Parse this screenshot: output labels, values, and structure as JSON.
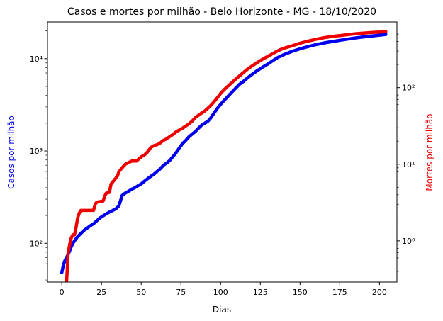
{
  "chart_data": {
    "type": "line",
    "title": "Casos e mortes por milhão - Belo Horizonte - MG - 18/10/2020",
    "xlabel": "Dias",
    "ylabel_left": "Casos por milhão",
    "ylabel_right": "Mortes por milhão",
    "xlim": [
      -9,
      211
    ],
    "ylim_left": [
      38,
      25000
    ],
    "ylim_right": [
      0.29,
      720
    ],
    "yscale_left": "log",
    "yscale_right": "log",
    "grid": false,
    "x_ticks": [
      0,
      25,
      50,
      75,
      100,
      125,
      150,
      175,
      200
    ],
    "y_left_ticks": [
      {
        "value": 100,
        "label": "10²"
      },
      {
        "value": 1000,
        "label": "10³"
      },
      {
        "value": 10000,
        "label": "10⁴"
      }
    ],
    "y_right_ticks": [
      {
        "value": 1,
        "label": "10⁰"
      },
      {
        "value": 10,
        "label": "10¹"
      },
      {
        "value": 100,
        "label": "10²"
      }
    ],
    "series": [
      {
        "axis": "left",
        "color": "#0000ee",
        "points": [
          [
            0,
            48
          ],
          [
            1,
            58
          ],
          [
            2,
            65
          ],
          [
            3,
            70
          ],
          [
            4,
            76
          ],
          [
            5,
            83
          ],
          [
            6,
            92
          ],
          [
            7,
            100
          ],
          [
            8,
            106
          ],
          [
            9,
            112
          ],
          [
            10,
            118
          ],
          [
            12,
            128
          ],
          [
            14,
            138
          ],
          [
            16,
            146
          ],
          [
            18,
            155
          ],
          [
            20,
            163
          ],
          [
            22,
            175
          ],
          [
            24,
            188
          ],
          [
            26,
            198
          ],
          [
            28,
            208
          ],
          [
            30,
            218
          ],
          [
            32,
            226
          ],
          [
            34,
            236
          ],
          [
            36,
            255
          ],
          [
            37,
            290
          ],
          [
            38,
            330
          ],
          [
            40,
            350
          ],
          [
            42,
            365
          ],
          [
            44,
            385
          ],
          [
            46,
            400
          ],
          [
            48,
            420
          ],
          [
            50,
            440
          ],
          [
            52,
            470
          ],
          [
            54,
            500
          ],
          [
            56,
            530
          ],
          [
            58,
            560
          ],
          [
            60,
            600
          ],
          [
            62,
            640
          ],
          [
            64,
            700
          ],
          [
            66,
            740
          ],
          [
            68,
            790
          ],
          [
            70,
            870
          ],
          [
            72,
            960
          ],
          [
            74,
            1080
          ],
          [
            76,
            1200
          ],
          [
            78,
            1300
          ],
          [
            80,
            1420
          ],
          [
            82,
            1520
          ],
          [
            84,
            1620
          ],
          [
            86,
            1760
          ],
          [
            88,
            1900
          ],
          [
            90,
            2000
          ],
          [
            92,
            2100
          ],
          [
            94,
            2300
          ],
          [
            96,
            2600
          ],
          [
            98,
            2900
          ],
          [
            100,
            3200
          ],
          [
            102,
            3500
          ],
          [
            104,
            3800
          ],
          [
            106,
            4150
          ],
          [
            108,
            4500
          ],
          [
            110,
            4900
          ],
          [
            112,
            5300
          ],
          [
            114,
            5600
          ],
          [
            116,
            6000
          ],
          [
            118,
            6400
          ],
          [
            120,
            6800
          ],
          [
            122,
            7200
          ],
          [
            124,
            7600
          ],
          [
            126,
            8000
          ],
          [
            128,
            8400
          ],
          [
            130,
            8800
          ],
          [
            132,
            9300
          ],
          [
            134,
            9800
          ],
          [
            136,
            10300
          ],
          [
            138,
            10700
          ],
          [
            140,
            11100
          ],
          [
            145,
            12000
          ],
          [
            150,
            12800
          ],
          [
            155,
            13500
          ],
          [
            160,
            14200
          ],
          [
            165,
            14800
          ],
          [
            170,
            15300
          ],
          [
            175,
            15800
          ],
          [
            180,
            16300
          ],
          [
            185,
            16800
          ],
          [
            190,
            17200
          ],
          [
            195,
            17600
          ],
          [
            200,
            18000
          ],
          [
            204,
            18300
          ]
        ]
      },
      {
        "axis": "right",
        "color": "#ee0000",
        "points": [
          [
            3,
            0.28
          ],
          [
            3.5,
            0.45
          ],
          [
            4,
            0.7
          ],
          [
            5,
            0.9
          ],
          [
            6,
            1.1
          ],
          [
            7,
            1.2
          ],
          [
            8,
            1.2
          ],
          [
            9,
            1.5
          ],
          [
            10,
            2.0
          ],
          [
            11,
            2.3
          ],
          [
            12,
            2.5
          ],
          [
            16,
            2.5
          ],
          [
            20,
            2.5
          ],
          [
            21,
            3.0
          ],
          [
            22,
            3.2
          ],
          [
            26,
            3.3
          ],
          [
            27,
            3.8
          ],
          [
            28,
            4.2
          ],
          [
            30,
            4.3
          ],
          [
            31,
            5.5
          ],
          [
            33,
            6.2
          ],
          [
            35,
            7.0
          ],
          [
            36,
            8.0
          ],
          [
            38,
            9.0
          ],
          [
            40,
            10.0
          ],
          [
            42,
            10.5
          ],
          [
            44,
            11.0
          ],
          [
            47,
            11.0
          ],
          [
            50,
            12.5
          ],
          [
            52,
            13.2
          ],
          [
            54,
            14.5
          ],
          [
            56,
            16.5
          ],
          [
            58,
            17.5
          ],
          [
            60,
            18.0
          ],
          [
            62,
            19.0
          ],
          [
            64,
            20.5
          ],
          [
            66,
            21.5
          ],
          [
            68,
            23.0
          ],
          [
            70,
            24.5
          ],
          [
            72,
            26.5
          ],
          [
            74,
            28.0
          ],
          [
            76,
            29.5
          ],
          [
            78,
            31.5
          ],
          [
            80,
            33.5
          ],
          [
            82,
            36.5
          ],
          [
            84,
            40.5
          ],
          [
            86,
            43.5
          ],
          [
            88,
            46.5
          ],
          [
            90,
            49.5
          ],
          [
            92,
            54
          ],
          [
            94,
            59
          ],
          [
            96,
            66
          ],
          [
            98,
            74
          ],
          [
            100,
            84
          ],
          [
            102,
            93
          ],
          [
            104,
            102
          ],
          [
            106,
            111
          ],
          [
            108,
            121
          ],
          [
            110,
            132
          ],
          [
            112,
            143
          ],
          [
            114,
            155
          ],
          [
            116,
            168
          ],
          [
            118,
            181
          ],
          [
            120,
            193
          ],
          [
            122,
            206
          ],
          [
            124,
            219
          ],
          [
            126,
            232
          ],
          [
            128,
            245
          ],
          [
            130,
            258
          ],
          [
            132,
            272
          ],
          [
            134,
            287
          ],
          [
            136,
            302
          ],
          [
            138,
            316
          ],
          [
            140,
            328
          ],
          [
            145,
            352
          ],
          [
            150,
            380
          ],
          [
            155,
            405
          ],
          [
            160,
            428
          ],
          [
            165,
            448
          ],
          [
            170,
            465
          ],
          [
            175,
            478
          ],
          [
            180,
            492
          ],
          [
            185,
            505
          ],
          [
            190,
            515
          ],
          [
            195,
            525
          ],
          [
            200,
            532
          ],
          [
            204,
            538
          ]
        ]
      }
    ]
  }
}
